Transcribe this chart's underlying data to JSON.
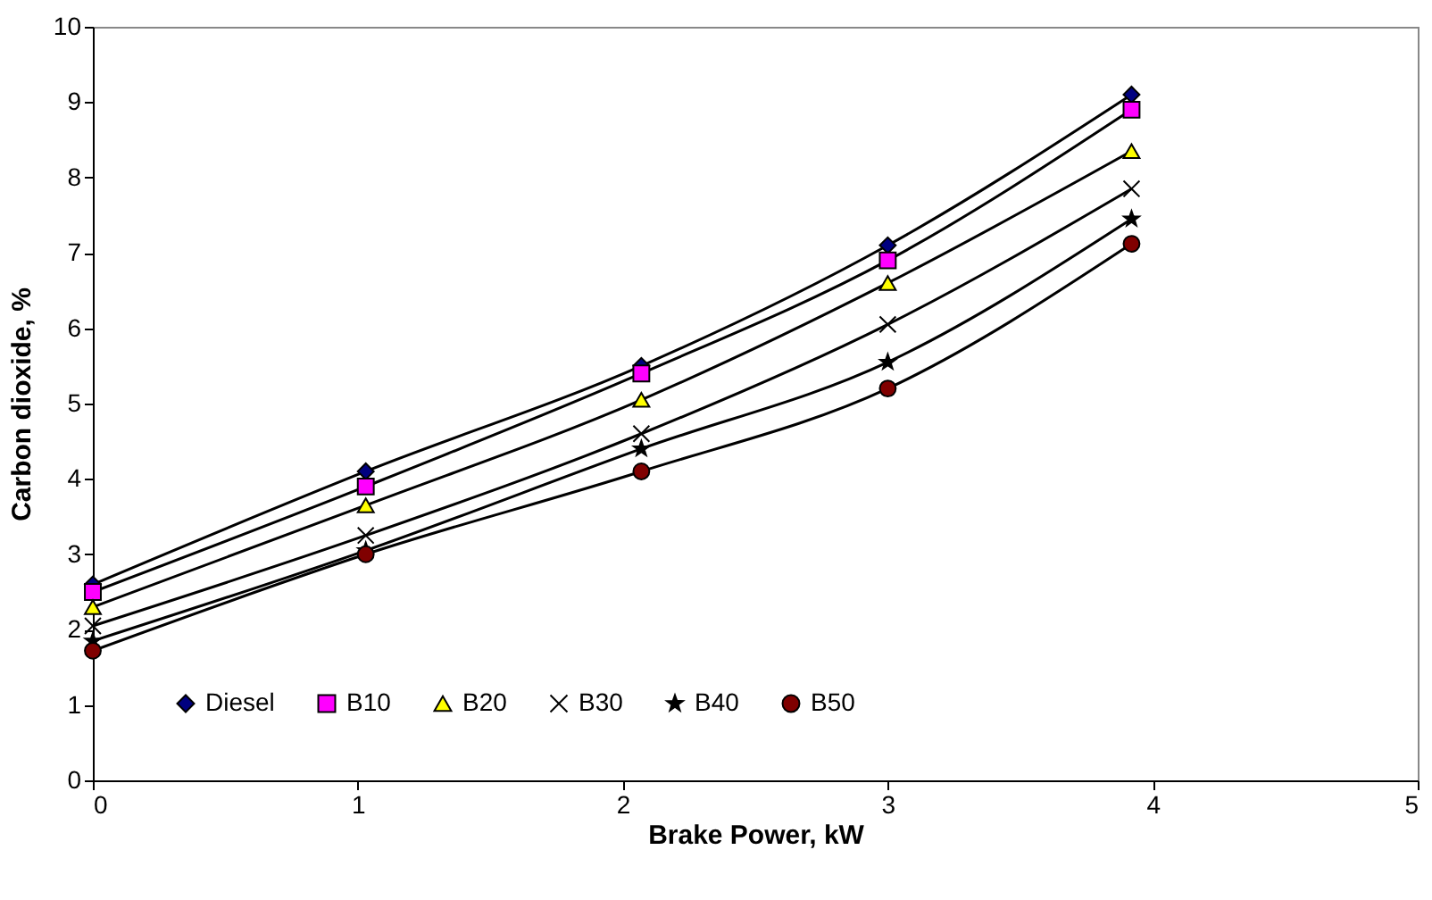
{
  "chart_data": {
    "type": "line",
    "xlabel": "Brake Power, kW",
    "ylabel": "Carbon dioxide, %",
    "x": [
      0,
      1.03,
      2.07,
      3.0,
      3.92
    ],
    "series": [
      {
        "name": "Diesel",
        "color": "#000080",
        "marker": "diamond",
        "values": [
          2.6,
          4.1,
          5.5,
          7.1,
          9.1
        ]
      },
      {
        "name": "B10",
        "color": "#ff00ff",
        "marker": "square",
        "values": [
          2.5,
          3.9,
          5.4,
          6.9,
          8.9
        ]
      },
      {
        "name": "B20",
        "color": "#ffff00",
        "marker": "triangle",
        "values": [
          2.3,
          3.65,
          5.05,
          6.6,
          8.35
        ]
      },
      {
        "name": "B30",
        "color": "#000000",
        "marker": "cross",
        "values": [
          2.05,
          3.25,
          4.6,
          6.05,
          7.85
        ]
      },
      {
        "name": "B40",
        "color": "#000000",
        "marker": "star",
        "values": [
          1.85,
          3.05,
          4.4,
          5.55,
          7.45
        ]
      },
      {
        "name": "B50",
        "color": "#800000",
        "marker": "circle",
        "values": [
          1.72,
          3.0,
          4.1,
          5.2,
          7.12
        ]
      }
    ],
    "xlim": [
      0,
      5
    ],
    "xticks": [
      0,
      1,
      2,
      3,
      4,
      5
    ],
    "ylim": [
      0,
      10
    ],
    "yticks": [
      0,
      1,
      2,
      3,
      4,
      5,
      6,
      7,
      8,
      9,
      10
    ],
    "grid": false,
    "legend": "bottom",
    "line_style": "solid"
  }
}
